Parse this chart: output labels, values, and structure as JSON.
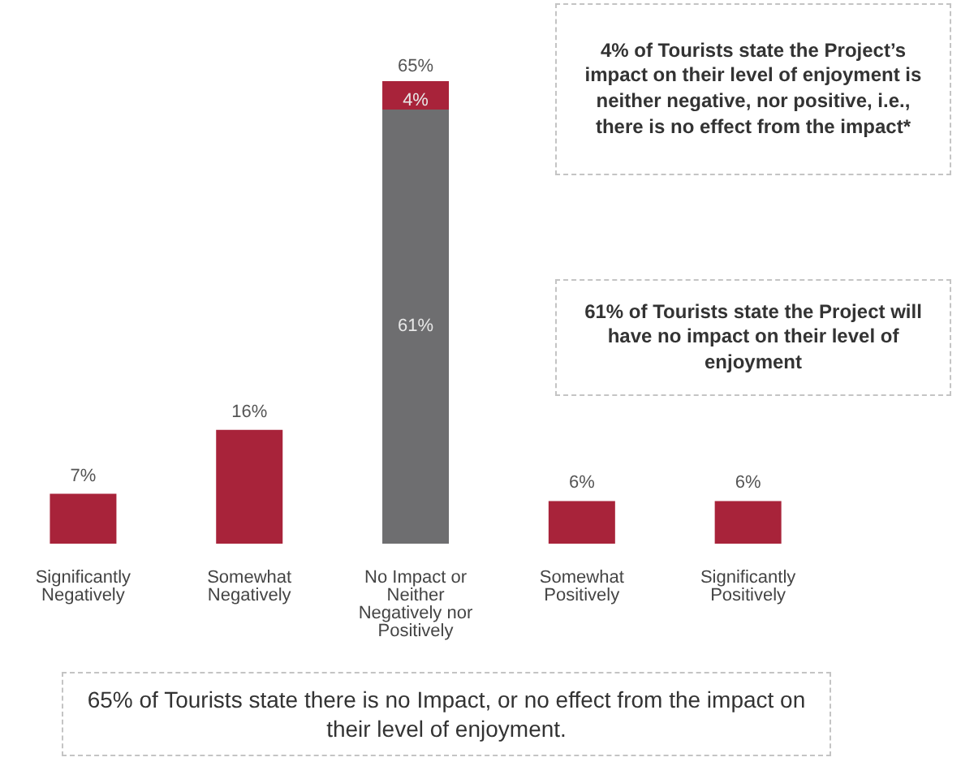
{
  "chart_data": {
    "type": "bar",
    "stacked": true,
    "categories": [
      "Significantly Negatively",
      "Somewhat Negatively",
      "No Impact or Neither Negatively nor Positively",
      "Somewhat Positively",
      "Significantly Positively"
    ],
    "series": [
      {
        "color": "#6e6e70",
        "values": [
          null,
          null,
          61,
          null,
          null
        ],
        "value_labels": [
          null,
          null,
          "61%",
          null,
          null
        ]
      },
      {
        "color": "#a8233a",
        "values": [
          7,
          16,
          4,
          6,
          6
        ],
        "value_labels": [
          "7%",
          "16%",
          "4%",
          "6%",
          "6%"
        ]
      }
    ],
    "totals": [
      null,
      null,
      "65%",
      null,
      null
    ],
    "tick_labels": "x",
    "grid": false,
    "legend": false,
    "annotations": [
      "4% of Tourists state the Project’s impact on their level of enjoyment is neither negative, nor positive, i.e., there is no effect from the impact*",
      "61% of Tourists state the Project will have no impact on their level of enjoyment",
      "65% of Tourists state there is no Impact, or no effect from the impact on their level of enjoyment."
    ]
  }
}
